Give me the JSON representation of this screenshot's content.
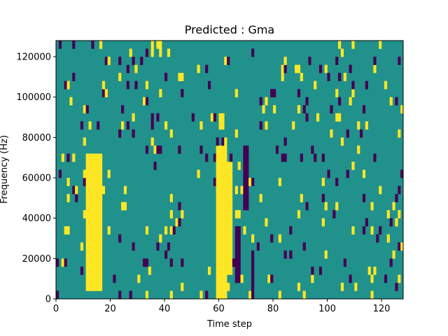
{
  "chart_data": {
    "type": "heatmap",
    "title": "Predicted : Gma",
    "xlabel": "Time step",
    "ylabel": "Frequency (Hz)",
    "xlim": [
      0,
      128
    ],
    "ylim": [
      0,
      128000
    ],
    "x_ticks": [
      0,
      20,
      40,
      60,
      80,
      100,
      120
    ],
    "x_tick_labels": [
      "0",
      "20",
      "40",
      "60",
      "80",
      "100",
      "120"
    ],
    "y_ticks": [
      0,
      20000,
      40000,
      60000,
      80000,
      100000,
      120000
    ],
    "y_tick_labels": [
      "0",
      "20000",
      "40000",
      "60000",
      "80000",
      "100000",
      "120000"
    ],
    "grid": false,
    "colormap": "viridis",
    "value_levels": [
      -1,
      0,
      1
    ],
    "colors": {
      "low": "#440154",
      "mid": "#21918c",
      "high": "#fde725"
    },
    "background_value": 0,
    "frequency_bin_width": 4000,
    "high_regions": [
      {
        "t": [
          11,
          17
        ],
        "f": [
          4000,
          72000
        ]
      },
      {
        "t": [
          59,
          63
        ],
        "f": [
          0,
          76000
        ]
      },
      {
        "t": [
          63,
          65
        ],
        "f": [
          12000,
          68000
        ]
      },
      {
        "t": [
          60,
          62
        ],
        "f": [
          84000,
          92000
        ]
      }
    ],
    "low_regions": [
      {
        "t": [
          66,
          68
        ],
        "f": [
          8000,
          36000
        ]
      },
      {
        "t": [
          69,
          71
        ],
        "f": [
          44000,
          76000
        ]
      },
      {
        "t": [
          72,
          73
        ],
        "f": [
          0,
          24000
        ]
      }
    ],
    "scatter_density": 0.07
  }
}
